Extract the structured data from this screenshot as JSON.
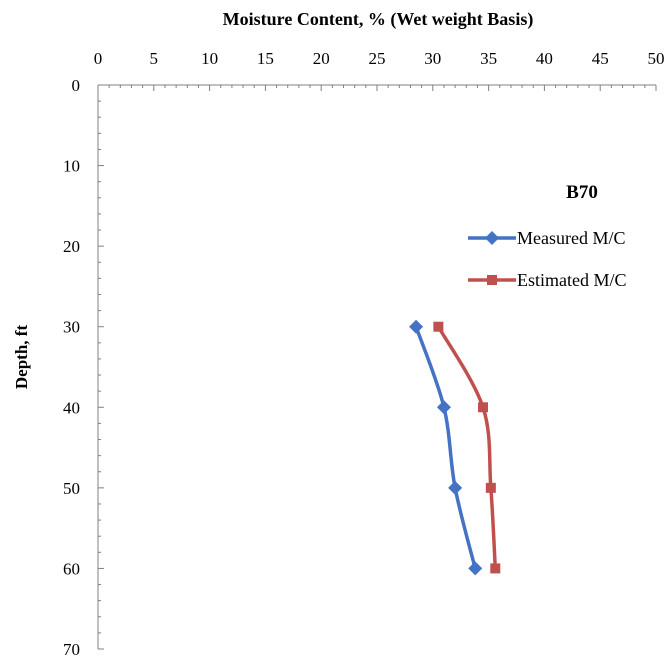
{
  "chart_data": {
    "type": "line",
    "title": "B70",
    "xlabel": "Moisture Content, % (Wet weight Basis)",
    "ylabel": "Depth, ft",
    "x_axis_position": "top",
    "y_axis_inverted": true,
    "xlim": [
      0,
      50
    ],
    "ylim": [
      0,
      70
    ],
    "x_ticks": [
      0,
      5,
      10,
      15,
      20,
      25,
      30,
      35,
      40,
      45,
      50
    ],
    "y_ticks": [
      0,
      10,
      20,
      30,
      40,
      50,
      60,
      70
    ],
    "grid": false,
    "legend_position": "right",
    "series": [
      {
        "name": "Measured M/C",
        "color": "#4472C4",
        "marker": "diamond",
        "points": [
          {
            "x": 28.5,
            "y": 30
          },
          {
            "x": 31.0,
            "y": 40
          },
          {
            "x": 32.0,
            "y": 50
          },
          {
            "x": 33.8,
            "y": 60
          }
        ]
      },
      {
        "name": "Estimated M/C",
        "color": "#C0504D",
        "marker": "square",
        "points": [
          {
            "x": 30.5,
            "y": 30
          },
          {
            "x": 34.5,
            "y": 40
          },
          {
            "x": 35.2,
            "y": 50
          },
          {
            "x": 35.6,
            "y": 60
          }
        ]
      }
    ]
  }
}
